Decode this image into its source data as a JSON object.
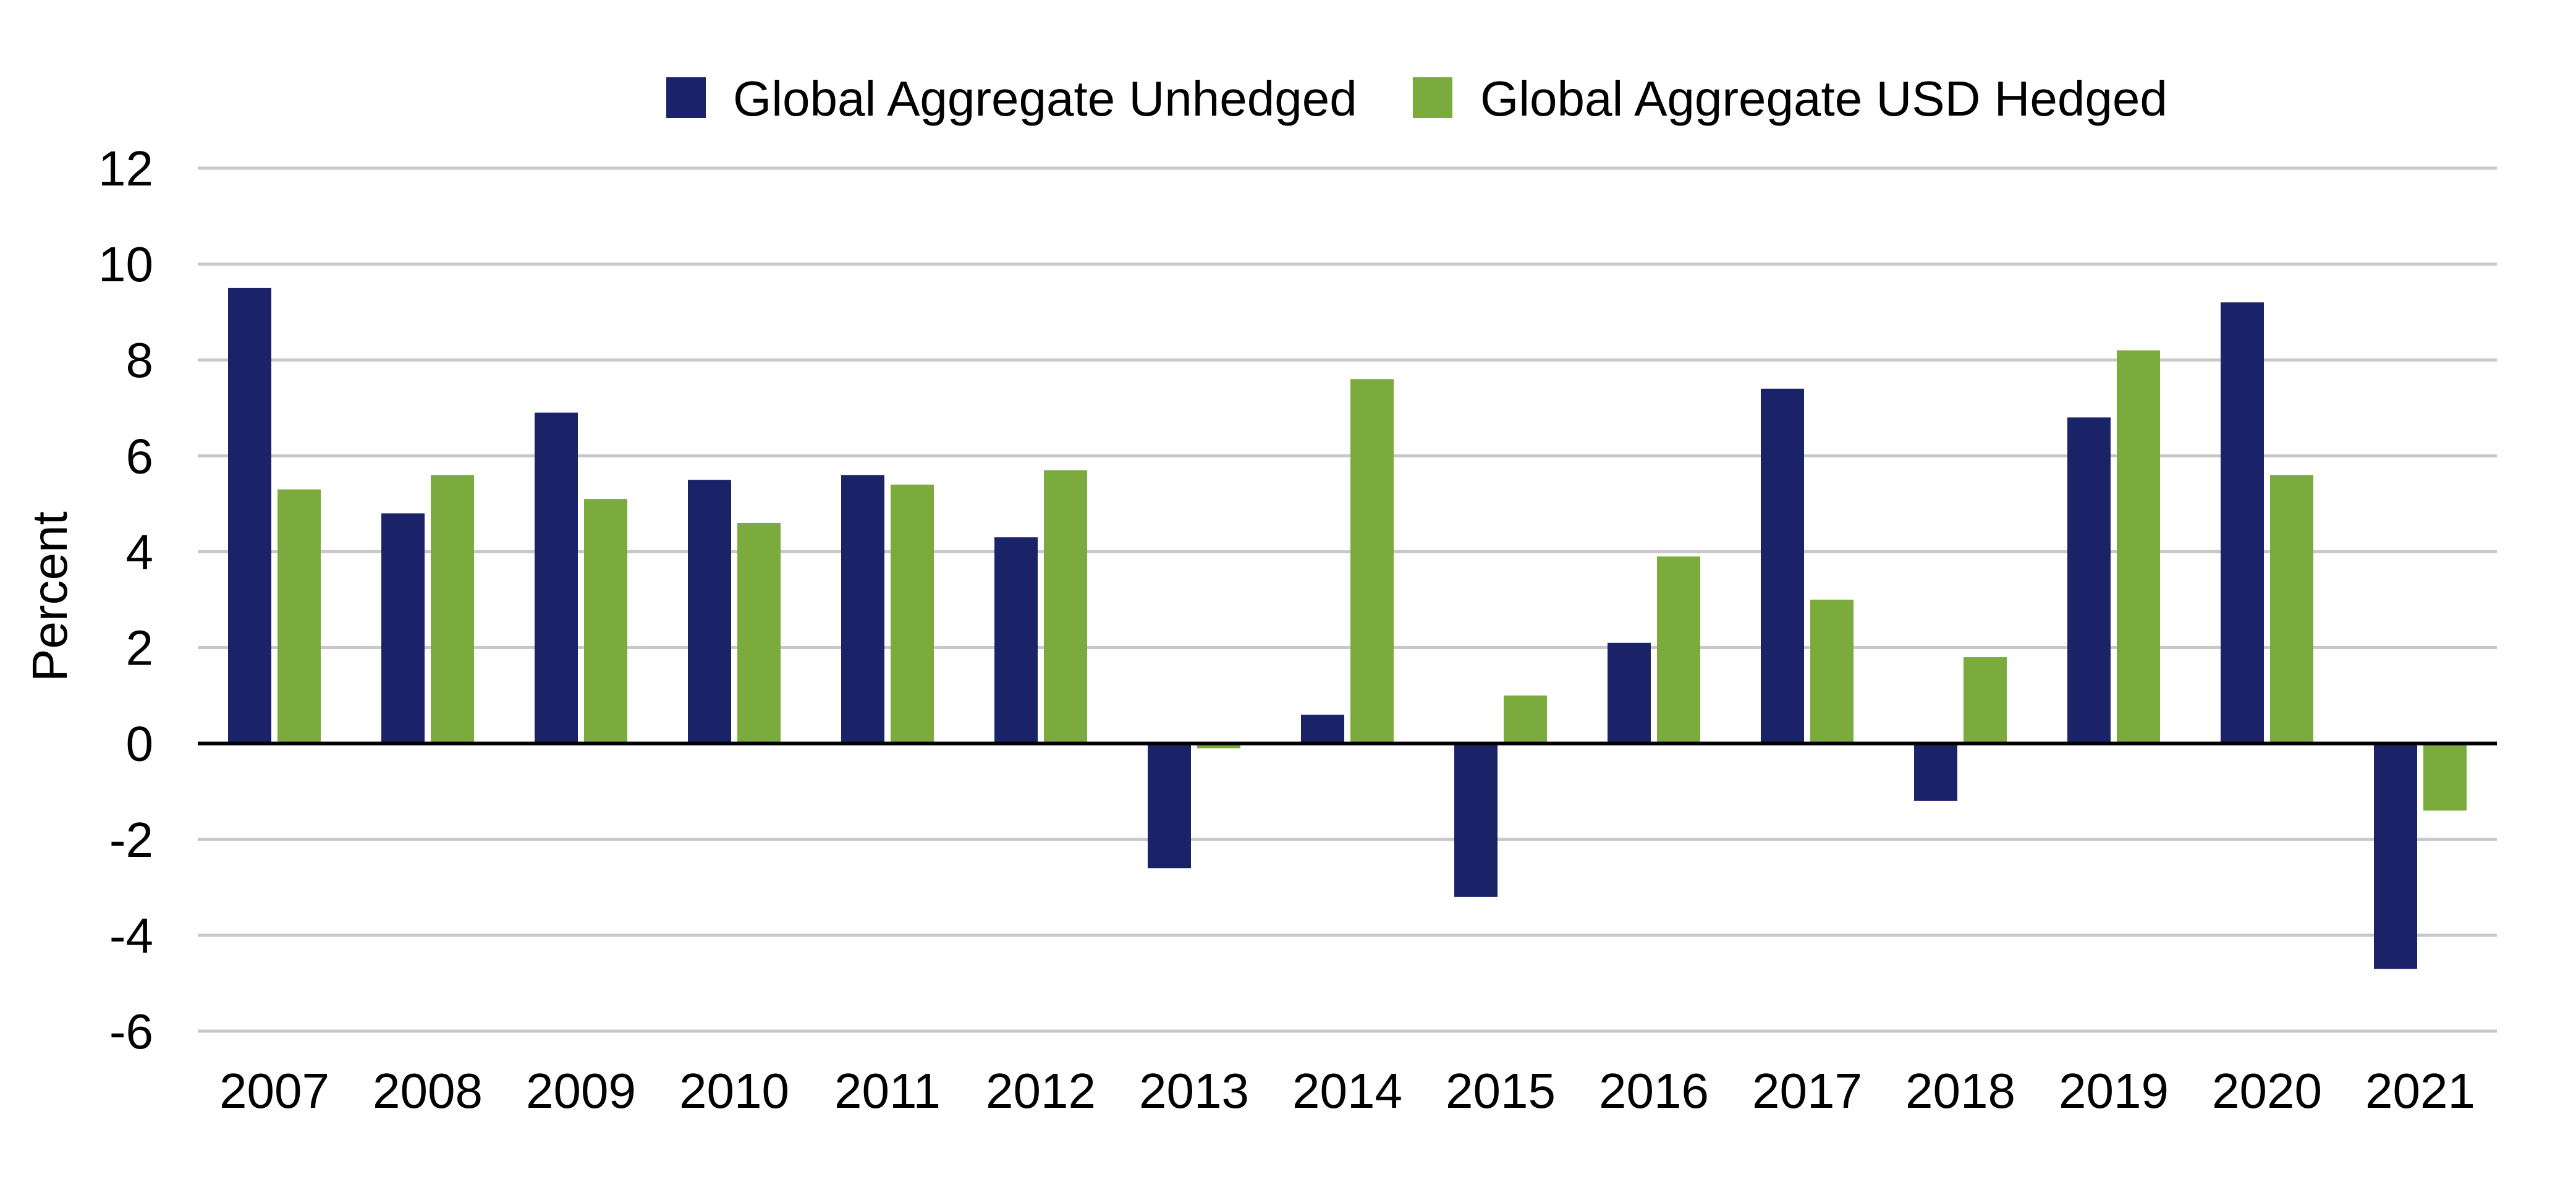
{
  "chart_data": {
    "type": "bar",
    "title": "",
    "xlabel": "",
    "ylabel": "Percent",
    "ylim": [
      -6,
      12
    ],
    "yticks": [
      12,
      10,
      8,
      6,
      4,
      2,
      0,
      -2,
      -4,
      -6
    ],
    "ytick_labels": [
      "12",
      "10",
      "8",
      "6",
      "4",
      "2",
      "0",
      "-2",
      "-4",
      "-6"
    ],
    "grid": true,
    "legend_position": "top-center",
    "categories": [
      "2007",
      "2008",
      "2009",
      "2010",
      "2011",
      "2012",
      "2013",
      "2014",
      "2015",
      "2016",
      "2017",
      "2018",
      "2019",
      "2020",
      "2021"
    ],
    "series": [
      {
        "name": "Global Aggregate Unhedged",
        "color": "#1b2368",
        "values": [
          9.5,
          4.8,
          6.9,
          5.5,
          5.6,
          4.3,
          -2.6,
          0.6,
          -3.2,
          2.1,
          7.4,
          -1.2,
          6.8,
          9.2,
          -4.7
        ]
      },
      {
        "name": "Global Aggregate USD Hedged",
        "color": "#7aab3c",
        "values": [
          5.3,
          5.6,
          5.1,
          4.6,
          5.4,
          5.7,
          -0.1,
          7.6,
          1.0,
          3.9,
          3.0,
          1.8,
          8.2,
          5.6,
          -1.4
        ]
      }
    ],
    "colors": {
      "gridline": "#c8c8c8",
      "zero_line": "#000000",
      "text": "#000000"
    }
  }
}
